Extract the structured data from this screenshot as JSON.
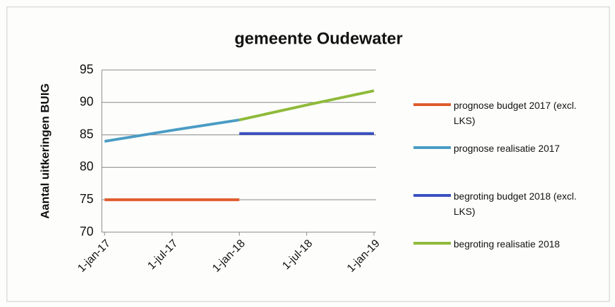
{
  "chart_data": {
    "type": "line",
    "title": "gemeente Oudewater",
    "y_label": "Aantal uitkeringen BUIG",
    "categories": [
      "1-jan-17",
      "1-jul-17",
      "1-jan-18",
      "1-jul-18",
      "1-jan-19"
    ],
    "series": [
      {
        "name": "prognose budget 2017 (excl. LKS)",
        "color": "#e05a2b",
        "values": [
          75,
          75,
          75,
          null,
          null
        ]
      },
      {
        "name": "prognose realisatie 2017",
        "color": "#4a9cc4",
        "values": [
          84,
          85.7,
          87.3,
          null,
          null
        ]
      },
      {
        "name": "begroting budget 2018 (excl. LKS)",
        "color": "#3a4fc0",
        "values": [
          null,
          null,
          85.2,
          85.2,
          85.2
        ]
      },
      {
        "name": "begroting realisatie 2018",
        "color": "#8fba3a",
        "values": [
          null,
          null,
          87.3,
          89.6,
          91.8
        ]
      }
    ],
    "ylim": [
      70,
      95
    ],
    "yticks": [
      70,
      75,
      80,
      85,
      90,
      95
    ],
    "grid": true,
    "legend": "right"
  }
}
